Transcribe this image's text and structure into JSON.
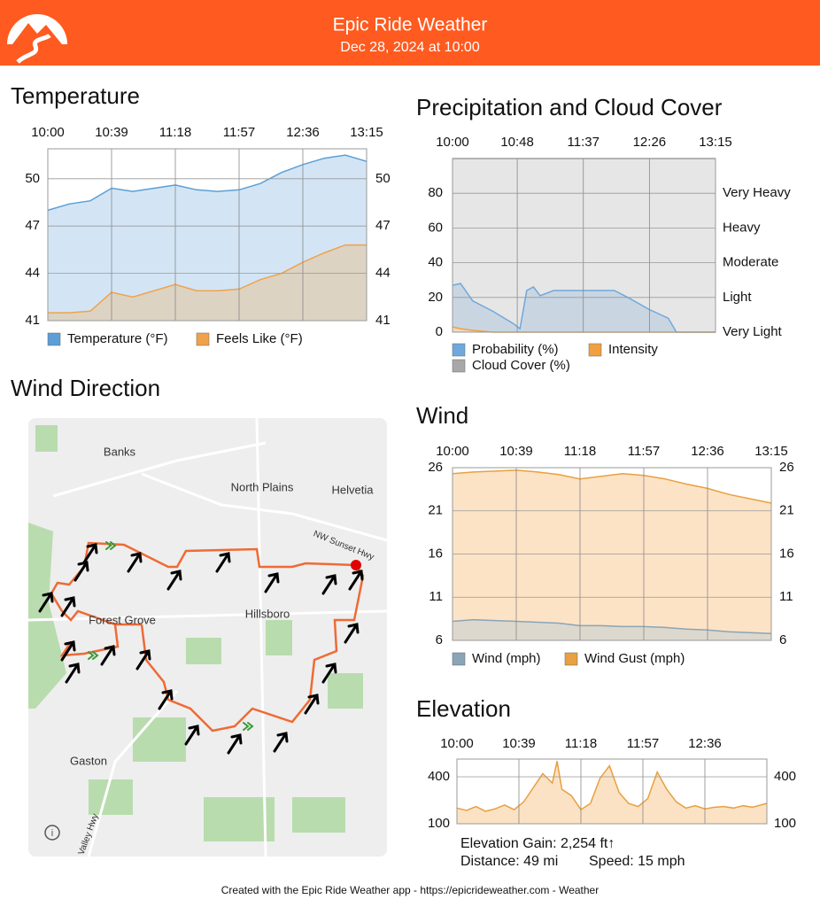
{
  "header": {
    "title": "Epic Ride Weather",
    "subtitle": "Dec 28, 2024 at 10:00"
  },
  "chart_data": [
    {
      "type": "area",
      "title": "Temperature",
      "x": [
        "10:00",
        "10:13",
        "10:26",
        "10:39",
        "10:52",
        "11:05",
        "11:18",
        "11:31",
        "11:44",
        "11:57",
        "12:10",
        "12:23",
        "12:36",
        "12:49",
        "13:02",
        "13:15"
      ],
      "xlim": [
        "10:00",
        "13:15"
      ],
      "xticks": [
        "10:00",
        "10:39",
        "11:18",
        "11:57",
        "12:36",
        "13:15"
      ],
      "ylim": [
        41,
        51.9
      ],
      "yticks": [
        41,
        44,
        47,
        50
      ],
      "y2lim": [
        41,
        51.9
      ],
      "y2ticks": [
        41,
        44,
        47,
        50
      ],
      "grid": true,
      "series": [
        {
          "name": "Temperature (°F)",
          "color": "#5b9fd6",
          "fill": "#d3e5f5",
          "values": [
            48.0,
            48.4,
            48.6,
            49.4,
            49.2,
            49.4,
            49.6,
            49.3,
            49.2,
            49.3,
            49.7,
            50.4,
            50.9,
            51.3,
            51.5,
            51.1
          ]
        },
        {
          "name": "Feels Like (°F)",
          "color": "#f0a24a",
          "fill": "#ddd3c3",
          "values": [
            41.5,
            41.5,
            41.6,
            42.8,
            42.5,
            42.9,
            43.3,
            42.9,
            42.9,
            43.0,
            43.6,
            44.0,
            44.7,
            45.3,
            45.8,
            45.8
          ]
        }
      ]
    },
    {
      "type": "area",
      "title": "Precipitation and Cloud Cover",
      "x": [
        "10:00",
        "10:06",
        "10:15",
        "10:30",
        "10:45",
        "10:50",
        "10:55",
        "11:00",
        "11:05",
        "11:15",
        "11:37",
        "12:00",
        "12:10",
        "12:26",
        "12:40",
        "12:46",
        "13:15"
      ],
      "xlim": [
        "10:00",
        "13:15"
      ],
      "xticks": [
        "10:00",
        "10:48",
        "11:37",
        "12:26",
        "13:15"
      ],
      "ylim": [
        0,
        100
      ],
      "yticks": [
        0,
        20,
        40,
        60,
        80
      ],
      "y2lim": [
        0,
        100
      ],
      "y2ticks": [
        {
          "value": 0,
          "label": "Very Light"
        },
        {
          "value": 20,
          "label": "Light"
        },
        {
          "value": 40,
          "label": "Moderate"
        },
        {
          "value": 60,
          "label": "Heavy"
        },
        {
          "value": 80,
          "label": "Very Heavy"
        }
      ],
      "grid": true,
      "series": [
        {
          "name": "Cloud Cover (%)",
          "color": "#a8a8a8",
          "fill": "#e6e6e6",
          "values": [
            100,
            100,
            100,
            100,
            100,
            100,
            100,
            100,
            100,
            100,
            100,
            100,
            100,
            100,
            100,
            100,
            100
          ]
        },
        {
          "name": "Probability (%)",
          "color": "#6fa8dc",
          "fill": "#c9d6e2",
          "values": [
            27,
            28,
            18,
            12,
            5,
            2,
            24,
            26,
            21,
            24,
            24,
            24,
            20,
            13,
            8,
            0,
            0
          ]
        },
        {
          "name": "Intensity",
          "color": "#f0a040",
          "fill": "#e8d9c4",
          "values": [
            3,
            2,
            1,
            0,
            0,
            0,
            0,
            0,
            0,
            0,
            0,
            0,
            0,
            0,
            0,
            0,
            0
          ]
        }
      ]
    },
    {
      "type": "area",
      "title": "Wind",
      "x": [
        "10:00",
        "10:13",
        "10:26",
        "10:39",
        "10:52",
        "11:05",
        "11:18",
        "11:31",
        "11:44",
        "11:57",
        "12:10",
        "12:23",
        "12:36",
        "12:49",
        "13:02",
        "13:15"
      ],
      "xlim": [
        "10:00",
        "13:15"
      ],
      "xticks": [
        "10:00",
        "10:39",
        "11:18",
        "11:57",
        "12:36",
        "13:15"
      ],
      "ylim": [
        6,
        26
      ],
      "yticks": [
        6,
        11,
        16,
        21,
        26
      ],
      "y2lim": [
        6,
        26
      ],
      "y2ticks": [
        6,
        11,
        16,
        21,
        26
      ],
      "grid": true,
      "series": [
        {
          "name": "Wind Gust (mph)",
          "color": "#e8a040",
          "fill": "#fde3c6",
          "values": [
            25.3,
            25.5,
            25.6,
            25.7,
            25.5,
            25.2,
            24.7,
            25.0,
            25.3,
            25.1,
            24.7,
            24.1,
            23.6,
            22.9,
            22.4,
            21.9
          ]
        },
        {
          "name": "Wind (mph)",
          "color": "#8aa4b8",
          "fill": "#ddd8cd",
          "values": [
            8.2,
            8.4,
            8.3,
            8.2,
            8.1,
            8.0,
            7.7,
            7.7,
            7.6,
            7.6,
            7.5,
            7.3,
            7.2,
            7.0,
            6.9,
            6.8
          ]
        }
      ]
    },
    {
      "type": "area",
      "title": "Elevation",
      "x": [
        "10:00",
        "10:06",
        "10:12",
        "10:18",
        "10:24",
        "10:30",
        "10:36",
        "10:42",
        "10:48",
        "10:54",
        "11:00",
        "11:03",
        "11:06",
        "11:12",
        "11:18",
        "11:24",
        "11:30",
        "11:36",
        "11:42",
        "11:48",
        "11:54",
        "12:00",
        "12:06",
        "12:12",
        "12:18",
        "12:24",
        "12:30",
        "12:36",
        "12:42",
        "12:48",
        "12:54",
        "13:00",
        "13:06",
        "13:15"
      ],
      "xlim": [
        "10:00",
        "13:15"
      ],
      "xticks": [
        "10:00",
        "10:39",
        "11:18",
        "11:57",
        "12:36"
      ],
      "ylim": [
        100,
        513
      ],
      "yticks": [
        100,
        400
      ],
      "y2lim": [
        100,
        513
      ],
      "y2ticks": [
        100,
        400
      ],
      "grid": true,
      "series": [
        {
          "color": "#e8a040",
          "fill": "#fbe2c4",
          "values": [
            200,
            185,
            210,
            180,
            195,
            220,
            190,
            240,
            330,
            420,
            360,
            500,
            320,
            280,
            190,
            230,
            390,
            470,
            300,
            230,
            210,
            260,
            430,
            320,
            240,
            200,
            215,
            195,
            205,
            210,
            200,
            215,
            205,
            230
          ]
        }
      ],
      "stats": [
        "Elevation Gain: 2,254 ft↑",
        "Distance: 49 mi",
        "Speed: 15 mph"
      ]
    }
  ],
  "map": {
    "title": "Wind Direction",
    "labels": [
      "Banks",
      "North Plains",
      "Helvetia",
      "NW Sunset Hwy",
      "Forest Grove",
      "Hillsboro",
      "Gaston",
      "Valley Hwy"
    ]
  },
  "footer": {
    "text": "Created with the Epic Ride Weather app - https://epicrideweather.com - ",
    "brand": "Weather"
  }
}
